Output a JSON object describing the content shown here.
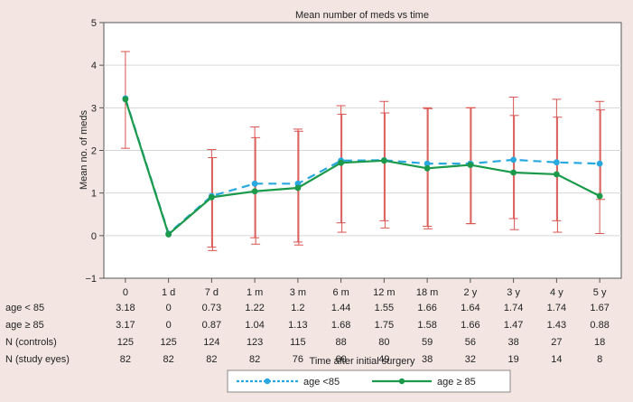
{
  "chart_data": {
    "type": "line",
    "title": "Mean number of meds vs time",
    "xlabel": "Time after initial surgery",
    "ylabel": "Mean no. of meds",
    "ylim": [
      -1,
      5
    ],
    "yticks": [
      -1,
      0,
      1,
      2,
      3,
      4,
      5
    ],
    "grid": true,
    "legend_position": "bottom",
    "categories": [
      "0",
      "1 d",
      "7 d",
      "1 m",
      "3 m",
      "6 m",
      "12 m",
      "18 m",
      "2 y",
      "3 y",
      "4 y",
      "5 y"
    ],
    "series": [
      {
        "name": "age <85",
        "color": "#29a8e0",
        "style": "dashed",
        "values": [
          3.18,
          0,
          0.73,
          1.22,
          1.2,
          1.44,
          1.55,
          1.66,
          1.64,
          1.74,
          1.74,
          1.67
        ],
        "points": [
          3.22,
          0.05,
          0.93,
          1.22,
          1.22,
          1.76,
          1.77,
          1.69,
          1.69,
          1.78,
          1.72,
          1.69
        ]
      },
      {
        "name": "age ≥ 85",
        "color": "#1a9a4a",
        "style": "solid",
        "values": [
          3.17,
          0,
          0.87,
          1.04,
          1.13,
          1.68,
          1.75,
          1.58,
          1.66,
          1.47,
          1.43,
          0.88
        ],
        "points": [
          3.2,
          0.03,
          0.9,
          1.04,
          1.12,
          1.71,
          1.76,
          1.58,
          1.66,
          1.48,
          1.44,
          0.93
        ]
      }
    ],
    "error_bars": {
      "color": "#d9534f",
      "ranges": [
        [
          [
            2.05,
            4.32
          ]
        ],
        [],
        [
          [
            -0.27,
            2.02
          ],
          [
            -0.35,
            1.83
          ]
        ],
        [
          [
            -0.05,
            2.55
          ],
          [
            -0.2,
            2.3
          ]
        ],
        [
          [
            -0.15,
            2.5
          ],
          [
            -0.22,
            2.45
          ]
        ],
        [
          [
            0.3,
            3.05
          ],
          [
            0.08,
            2.85
          ]
        ],
        [
          [
            0.35,
            3.15
          ],
          [
            0.18,
            2.88
          ]
        ],
        [
          [
            0.22,
            3.0
          ],
          [
            0.16,
            2.98
          ]
        ],
        [
          [
            0.28,
            3.0
          ],
          [
            0.28,
            3.0
          ]
        ],
        [
          [
            0.4,
            3.25
          ],
          [
            0.14,
            2.82
          ]
        ],
        [
          [
            0.35,
            3.2
          ],
          [
            0.08,
            2.78
          ]
        ],
        [
          [
            0.05,
            3.15
          ],
          [
            0.85,
            2.95
          ]
        ]
      ]
    },
    "table": {
      "rows": [
        {
          "label": "age < 85",
          "values": [
            "3.18",
            "0",
            "0.73",
            "1.22",
            "1.2",
            "1.44",
            "1.55",
            "1.66",
            "1.64",
            "1.74",
            "1.74",
            "1.67"
          ]
        },
        {
          "label": "age ≥ 85",
          "values": [
            "3.17",
            "0",
            "0.87",
            "1.04",
            "1.13",
            "1.68",
            "1.75",
            "1.58",
            "1.66",
            "1.47",
            "1.43",
            "0.88"
          ]
        },
        {
          "label": "N (controls)",
          "values": [
            "125",
            "125",
            "124",
            "123",
            "115",
            "88",
            "80",
            "59",
            "56",
            "38",
            "27",
            "18"
          ]
        },
        {
          "label": "N (study eyes)",
          "values": [
            "82",
            "82",
            "82",
            "82",
            "76",
            "60",
            "49",
            "38",
            "32",
            "19",
            "14",
            "8"
          ]
        }
      ]
    }
  }
}
